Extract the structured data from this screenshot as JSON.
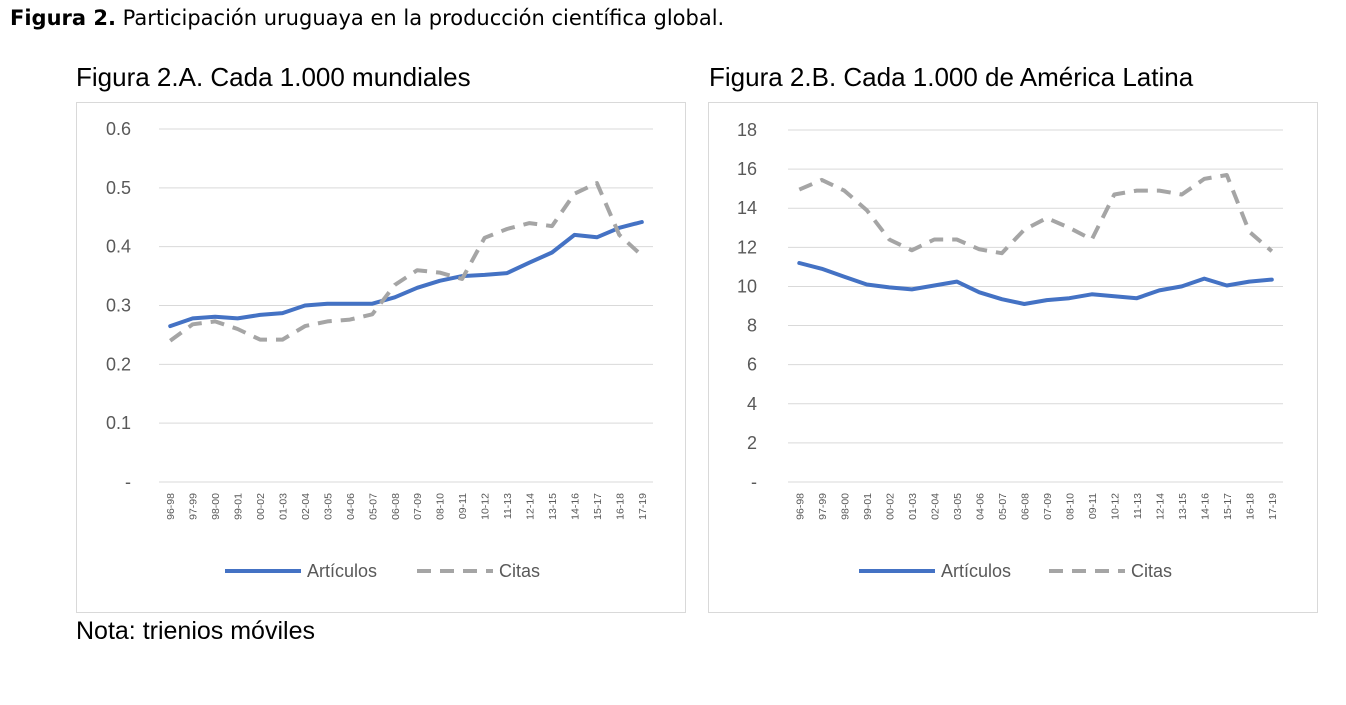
{
  "figure": {
    "label": "Figura 2.",
    "caption": "Participación uruguaya en la producción científica global."
  },
  "note": "Nota: trienios móviles",
  "chart_data": [
    {
      "type": "line",
      "title": "Figura 2.A. Cada 1.000 mundiales",
      "x": [
        "96-98",
        "97-99",
        "98-00",
        "99-01",
        "00-02",
        "01-03",
        "02-04",
        "03-05",
        "04-06",
        "05-07",
        "06-08",
        "07-09",
        "08-10",
        "09-11",
        "10-12",
        "11-13",
        "12-14",
        "13-15",
        "14-16",
        "15-17",
        "16-18",
        "17-19"
      ],
      "ylim": [
        0,
        0.6
      ],
      "yticks": [
        0,
        0.1,
        0.2,
        0.3,
        0.4,
        0.5,
        0.6
      ],
      "ytick_labels": [
        "-",
        "0.1",
        "0.2",
        "0.3",
        "0.4",
        "0.5",
        "0.6"
      ],
      "grid": true,
      "legend_position": "bottom",
      "series": [
        {
          "name": "Artículos",
          "style": "solid",
          "color": "#4472C4",
          "values": [
            0.265,
            0.278,
            0.281,
            0.278,
            0.284,
            0.287,
            0.3,
            0.303,
            0.303,
            0.303,
            0.314,
            0.33,
            0.342,
            0.35,
            0.352,
            0.355,
            0.373,
            0.39,
            0.42,
            0.416,
            0.432,
            0.442
          ]
        },
        {
          "name": "Citas",
          "style": "dashed",
          "color": "#A5A5A5",
          "values": [
            0.24,
            0.268,
            0.273,
            0.26,
            0.242,
            0.242,
            0.265,
            0.273,
            0.276,
            0.285,
            0.335,
            0.36,
            0.356,
            0.345,
            0.415,
            0.43,
            0.44,
            0.435,
            0.49,
            0.508,
            0.42,
            0.385
          ]
        }
      ]
    },
    {
      "type": "line",
      "title": "Figura 2.B. Cada 1.000 de América Latina",
      "x": [
        "96-98",
        "97-99",
        "98-00",
        "99-01",
        "00-02",
        "01-03",
        "02-04",
        "03-05",
        "04-06",
        "05-07",
        "06-08",
        "07-09",
        "08-10",
        "09-11",
        "10-12",
        "11-13",
        "12-14",
        "13-15",
        "14-16",
        "15-17",
        "16-18",
        "17-19"
      ],
      "ylim": [
        0,
        18
      ],
      "yticks": [
        0,
        2,
        4,
        6,
        8,
        10,
        12,
        14,
        16,
        18
      ],
      "ytick_labels": [
        "-",
        "2",
        "4",
        "6",
        "8",
        "10",
        "12",
        "14",
        "16",
        "18"
      ],
      "grid": true,
      "legend_position": "bottom",
      "series": [
        {
          "name": "Artículos",
          "style": "solid",
          "color": "#4472C4",
          "values": [
            11.2,
            10.9,
            10.5,
            10.1,
            9.95,
            9.85,
            10.05,
            10.25,
            9.7,
            9.35,
            9.1,
            9.3,
            9.4,
            9.6,
            9.5,
            9.4,
            9.8,
            10.0,
            10.4,
            10.05,
            10.25,
            10.35
          ]
        },
        {
          "name": "Citas",
          "style": "dashed",
          "color": "#A5A5A5",
          "values": [
            14.95,
            15.45,
            14.9,
            13.9,
            12.4,
            11.85,
            12.4,
            12.4,
            11.9,
            11.7,
            12.9,
            13.5,
            13.0,
            12.4,
            14.7,
            14.9,
            14.9,
            14.7,
            15.5,
            15.7,
            12.8,
            11.8
          ]
        }
      ]
    }
  ]
}
